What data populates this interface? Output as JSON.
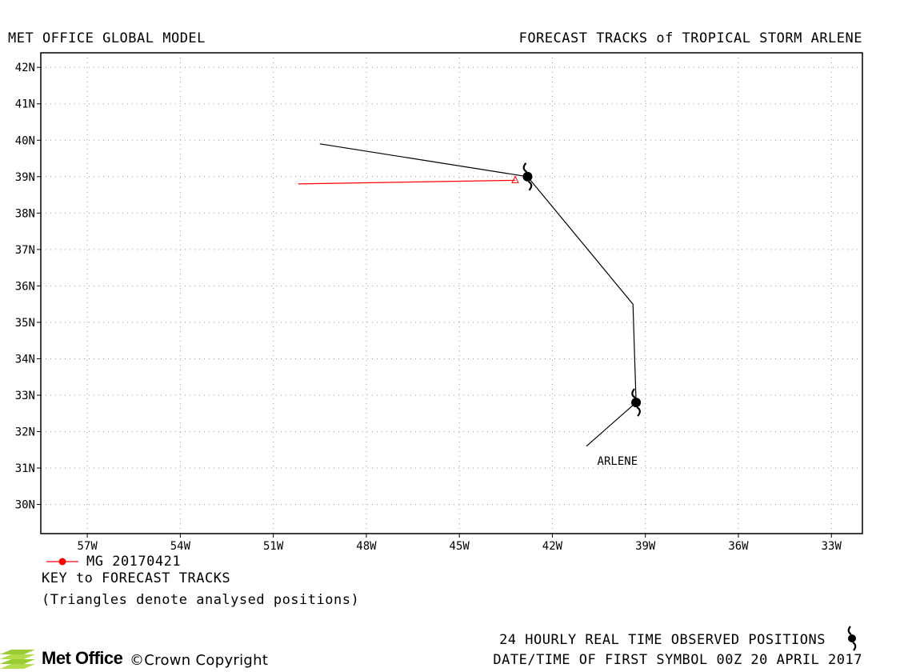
{
  "header": {
    "left": "MET OFFICE GLOBAL MODEL",
    "right": "FORECAST TRACKS of TROPICAL STORM ARLENE"
  },
  "chart_data": {
    "type": "line",
    "xlim": [
      -58.5,
      -32
    ],
    "ylim": [
      29.2,
      42.4
    ],
    "x_ticks": [
      -57,
      -54,
      -51,
      -48,
      -45,
      -42,
      -39,
      -36,
      -33
    ],
    "x_tick_labels": [
      "57W",
      "54W",
      "51W",
      "48W",
      "45W",
      "42W",
      "39W",
      "36W",
      "33W"
    ],
    "y_ticks": [
      30,
      31,
      32,
      33,
      34,
      35,
      36,
      37,
      38,
      39,
      40,
      41,
      42
    ],
    "y_tick_labels": [
      "30N",
      "31N",
      "32N",
      "33N",
      "34N",
      "35N",
      "36N",
      "37N",
      "38N",
      "39N",
      "40N",
      "41N",
      "42N"
    ],
    "grid": true,
    "legend": "below-left",
    "series": [
      {
        "name": "",
        "color": "#000000",
        "points": [
          {
            "lon": -40.9,
            "lat": 31.6
          },
          {
            "lon": -39.3,
            "lat": 32.8
          },
          {
            "lon": -39.4,
            "lat": 35.5
          },
          {
            "lon": -42.8,
            "lat": 39.0
          },
          {
            "lon": -49.5,
            "lat": 39.9
          }
        ],
        "storm_symbols": [
          {
            "lon": -39.3,
            "lat": 32.8
          },
          {
            "lon": -42.8,
            "lat": 39.0
          }
        ]
      },
      {
        "name": "MG 20170421",
        "color": "#ff0000",
        "points": [
          {
            "lon": -43.2,
            "lat": 38.9
          },
          {
            "lon": -50.2,
            "lat": 38.8
          }
        ],
        "analysed_triangle": {
          "lon": -43.2,
          "lat": 38.9
        }
      }
    ],
    "annotations": [
      {
        "text": "ARLENE",
        "lon": -39.9,
        "lat": 31.2
      }
    ]
  },
  "key": {
    "series_label": "MG 20170421",
    "title": "KEY to FORECAST TRACKS",
    "note": "(Triangles denote analysed positions)"
  },
  "footer": {
    "observed": "24 HOURLY REAL TIME OBSERVED POSITIONS",
    "date": "DATE/TIME OF FIRST SYMBOL 00Z 20 APRIL 2017",
    "logo_text": "Met Office",
    "copyright": "©Crown Copyright"
  },
  "colors": {
    "forecast_track": "#ff0000",
    "observed_track": "#000000",
    "logo_green": "#9acd32"
  }
}
